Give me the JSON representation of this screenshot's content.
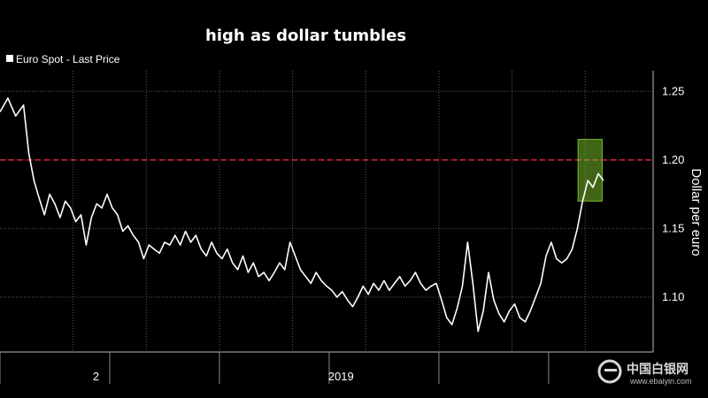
{
  "chart_data": {
    "type": "line",
    "title": "high as dollar tumbles",
    "ylabel": "Dollar per euro",
    "ylim": [
      1.06,
      1.265
    ],
    "y_ticks": [
      1.1,
      1.15,
      1.2,
      1.25
    ],
    "x_ticks": [
      "2",
      "2019"
    ],
    "grid": true,
    "legend_position": "top-left",
    "reference_line": {
      "value": 1.2,
      "color": "#e8203a",
      "style": "dashed"
    },
    "highlight_box": {
      "x_start": 0.885,
      "x_end": 0.922,
      "y_min": 1.17,
      "y_max": 1.215,
      "color": "#76b82a"
    },
    "series": [
      {
        "name": "Euro Spot - Last Price",
        "color": "#ffffff",
        "x": [
          0.0,
          0.012,
          0.024,
          0.036,
          0.044,
          0.052,
          0.06,
          0.068,
          0.076,
          0.084,
          0.092,
          0.1,
          0.108,
          0.116,
          0.124,
          0.132,
          0.14,
          0.148,
          0.156,
          0.164,
          0.172,
          0.18,
          0.188,
          0.196,
          0.204,
          0.212,
          0.22,
          0.228,
          0.236,
          0.244,
          0.252,
          0.26,
          0.268,
          0.276,
          0.284,
          0.292,
          0.3,
          0.308,
          0.316,
          0.324,
          0.332,
          0.34,
          0.348,
          0.356,
          0.364,
          0.372,
          0.38,
          0.388,
          0.396,
          0.404,
          0.412,
          0.42,
          0.428,
          0.436,
          0.444,
          0.452,
          0.46,
          0.468,
          0.476,
          0.484,
          0.492,
          0.5,
          0.508,
          0.516,
          0.524,
          0.532,
          0.54,
          0.548,
          0.556,
          0.564,
          0.572,
          0.58,
          0.588,
          0.596,
          0.604,
          0.612,
          0.62,
          0.628,
          0.636,
          0.644,
          0.652,
          0.66,
          0.668,
          0.676,
          0.684,
          0.692,
          0.7,
          0.708,
          0.716,
          0.724,
          0.732,
          0.74,
          0.748,
          0.756,
          0.764,
          0.772,
          0.78,
          0.788,
          0.796,
          0.804,
          0.812,
          0.82,
          0.828,
          0.836,
          0.844,
          0.852,
          0.86,
          0.868,
          0.876,
          0.884,
          0.892,
          0.9,
          0.908,
          0.916,
          0.924
        ],
        "y": [
          1.235,
          1.245,
          1.232,
          1.24,
          1.205,
          1.185,
          1.172,
          1.16,
          1.175,
          1.168,
          1.158,
          1.17,
          1.165,
          1.155,
          1.16,
          1.138,
          1.158,
          1.168,
          1.165,
          1.175,
          1.165,
          1.16,
          1.148,
          1.152,
          1.145,
          1.14,
          1.128,
          1.138,
          1.135,
          1.132,
          1.14,
          1.138,
          1.145,
          1.138,
          1.148,
          1.14,
          1.145,
          1.135,
          1.13,
          1.14,
          1.132,
          1.128,
          1.135,
          1.125,
          1.12,
          1.13,
          1.118,
          1.125,
          1.115,
          1.118,
          1.112,
          1.118,
          1.125,
          1.12,
          1.14,
          1.13,
          1.12,
          1.115,
          1.11,
          1.118,
          1.112,
          1.108,
          1.105,
          1.1,
          1.104,
          1.098,
          1.093,
          1.1,
          1.108,
          1.102,
          1.11,
          1.105,
          1.112,
          1.105,
          1.11,
          1.115,
          1.108,
          1.112,
          1.118,
          1.11,
          1.105,
          1.108,
          1.11,
          1.098,
          1.085,
          1.08,
          1.092,
          1.108,
          1.14,
          1.11,
          1.075,
          1.09,
          1.118,
          1.098,
          1.088,
          1.082,
          1.09,
          1.095,
          1.085,
          1.082,
          1.09,
          1.1,
          1.11,
          1.13,
          1.14,
          1.128,
          1.125,
          1.128,
          1.135,
          1.15,
          1.17,
          1.185,
          1.18,
          1.19,
          1.185
        ]
      }
    ]
  },
  "watermark": {
    "brand": "中国白银网",
    "url": "www.ebaiyin.com"
  }
}
